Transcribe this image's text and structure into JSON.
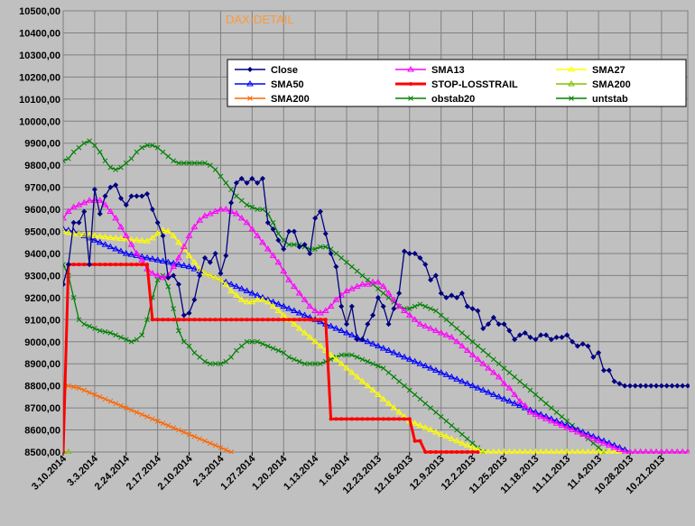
{
  "chart_data": {
    "type": "line",
    "title": "DAX-DETAIL",
    "xlabel": "",
    "ylabel": "",
    "ylim": [
      8500,
      10500
    ],
    "y_step": 100,
    "ytick_labels": [
      "8500,00",
      "8600,00",
      "8700,00",
      "8800,00",
      "8900,00",
      "9000,00",
      "9100,00",
      "9200,00",
      "9300,00",
      "9400,00",
      "9500,00",
      "9600,00",
      "9700,00",
      "9800,00",
      "9900,00",
      "10000,00",
      "10100,00",
      "10200,00",
      "10300,00",
      "10400,00",
      "10500,00"
    ],
    "x_count": 120,
    "xtick_labels": [
      "3.10.2014",
      "3.3.2014",
      "2.24.2014",
      "2.17.2014",
      "2.10.2014",
      "2.3.2014",
      "1.27.2014",
      "1.20.2014",
      "1.13.2014",
      "1.6.2014",
      "12.23.2013",
      "12.16.2013",
      "12.9.2013",
      "12.2.2013",
      "11.25.2013",
      "11.18.2013",
      "11.11.2013",
      "11.4.2013",
      "10.28.2013",
      "10.21.2013"
    ],
    "xtick_positions": [
      0,
      6,
      12,
      18,
      24,
      30,
      36,
      42,
      48,
      54,
      60,
      66,
      72,
      78,
      84,
      90,
      96,
      102,
      108,
      114
    ],
    "grid": true,
    "legend_position": "top-right",
    "series": [
      {
        "name": "Close",
        "color": "#000080",
        "marker": "diamond",
        "step": 1,
        "values": [
          9260,
          9350,
          9540,
          9540,
          9590,
          9350,
          9690,
          9580,
          9660,
          9700,
          9710,
          9650,
          9620,
          9660,
          9660,
          9660,
          9670,
          9600,
          9540,
          9480,
          9290,
          9300,
          9260,
          9120,
          9130,
          9190,
          9300,
          9380,
          9360,
          9400,
          9310,
          9390,
          9630,
          9720,
          9740,
          9720,
          9740,
          9720,
          9740,
          9540,
          9510,
          9460,
          9420,
          9500,
          9500,
          9430,
          9440,
          9400,
          9560,
          9590,
          9490,
          9400,
          9340,
          9160,
          9080,
          9160,
          9010,
          9010,
          9080,
          9120,
          9200,
          9160,
          9080,
          9150,
          9220,
          9410,
          9400,
          9400,
          9380,
          9350,
          9280,
          9300,
          9220,
          9200,
          9210,
          9200,
          9220,
          9160,
          9150,
          9140,
          9060,
          9080,
          9110,
          9080,
          9080,
          9050,
          9010,
          9030,
          9040,
          9020,
          9010,
          9030,
          9030,
          9010,
          9020,
          9020,
          9030,
          9000,
          8980,
          8990,
          8980,
          8930,
          8950,
          8870,
          8870,
          8820,
          8810,
          8800,
          8800,
          8800,
          8800,
          8800,
          8800,
          8800,
          8800,
          8800,
          8800,
          8800,
          8800,
          8800
        ]
      },
      {
        "name": "SMA13",
        "color": "#ff00ff",
        "marker": "triangle",
        "step": 1,
        "values": [
          9560,
          9590,
          9610,
          9620,
          9630,
          9640,
          9640,
          9640,
          9620,
          9590,
          9560,
          9520,
          9480,
          9440,
          9400,
          9370,
          9330,
          9310,
          9300,
          9290,
          9300,
          9340,
          9380,
          9430,
          9480,
          9520,
          9550,
          9570,
          9580,
          9590,
          9600,
          9600,
          9590,
          9580,
          9560,
          9540,
          9510,
          9480,
          9450,
          9420,
          9390,
          9360,
          9320,
          9280,
          9250,
          9220,
          9190,
          9160,
          9140,
          9130,
          9140,
          9160,
          9190,
          9210,
          9230,
          9240,
          9250,
          9260,
          9260,
          9270,
          9270,
          9250,
          9220,
          9190,
          9160,
          9140,
          9120,
          9100,
          9080,
          9070,
          9060,
          9050,
          9040,
          9030,
          9020,
          9000,
          8980,
          8960,
          8940,
          8920,
          8900,
          8880,
          8860,
          8840,
          8810,
          8790,
          8760,
          8730,
          8710,
          8680,
          8670,
          8660,
          8650,
          8640,
          8630,
          8620,
          8610,
          8600,
          8590,
          8580,
          8570,
          8560,
          8550,
          8540,
          8530,
          8520,
          8510,
          8500,
          8500,
          8500,
          8500,
          8500,
          8500,
          8500,
          8500,
          8500,
          8500,
          8500,
          8500,
          8500
        ]
      },
      {
        "name": "SMA27",
        "color": "#ffff00",
        "marker": "triangle",
        "step": 1,
        "values": [
          9500,
          9495,
          9490,
          9488,
          9485,
          9482,
          9480,
          9478,
          9475,
          9472,
          9470,
          9468,
          9465,
          9462,
          9460,
          9458,
          9456,
          9470,
          9490,
          9505,
          9500,
          9480,
          9450,
          9420,
          9390,
          9360,
          9330,
          9310,
          9300,
          9290,
          9280,
          9260,
          9230,
          9210,
          9190,
          9180,
          9180,
          9190,
          9190,
          9180,
          9160,
          9140,
          9120,
          9100,
          9080,
          9060,
          9040,
          9020,
          9000,
          8980,
          8960,
          8940,
          8920,
          8900,
          8880,
          8860,
          8840,
          8820,
          8800,
          8780,
          8760,
          8740,
          8720,
          8700,
          8680,
          8660,
          8640,
          8630,
          8620,
          8610,
          8600,
          8590,
          8580,
          8570,
          8560,
          8550,
          8540,
          8530,
          8520,
          8510,
          8500,
          8500,
          8500,
          8500,
          8500,
          8500,
          8500,
          8500,
          8500,
          8500,
          8500,
          8500,
          8500,
          8500,
          8500,
          8500,
          8500,
          8500,
          8500,
          8500,
          8500,
          8500,
          8500,
          8500,
          8500,
          8500,
          8500,
          8500,
          8500,
          8500,
          8500,
          8500,
          8500,
          8500,
          8500,
          8500,
          8500,
          8500,
          8500,
          8500
        ]
      },
      {
        "name": "SMA50",
        "color": "#0000ff",
        "marker": "triangle",
        "step": 1,
        "values": [
          9510,
          9505,
          9500,
          9490,
          9480,
          9470,
          9460,
          9450,
          9440,
          9430,
          9420,
          9410,
          9400,
          9395,
          9390,
          9385,
          9380,
          9375,
          9370,
          9365,
          9360,
          9355,
          9350,
          9345,
          9340,
          9330,
          9320,
          9310,
          9300,
          9290,
          9280,
          9270,
          9260,
          9250,
          9240,
          9230,
          9220,
          9210,
          9200,
          9190,
          9180,
          9170,
          9160,
          9150,
          9140,
          9130,
          9120,
          9110,
          9100,
          9090,
          9080,
          9070,
          9060,
          9050,
          9040,
          9030,
          9020,
          9010,
          9000,
          8990,
          8980,
          8970,
          8960,
          8950,
          8940,
          8930,
          8920,
          8910,
          8900,
          8890,
          8880,
          8870,
          8860,
          8850,
          8840,
          8830,
          8820,
          8810,
          8800,
          8790,
          8780,
          8770,
          8760,
          8750,
          8740,
          8730,
          8720,
          8710,
          8700,
          8690,
          8680,
          8670,
          8660,
          8650,
          8640,
          8630,
          8620,
          8610,
          8600,
          8590,
          8580,
          8570,
          8560,
          8550,
          8540,
          8530,
          8520,
          8510,
          8500,
          8500,
          8500,
          8500,
          8500,
          8500,
          8500,
          8500,
          8500,
          8500,
          8500,
          8500
        ]
      },
      {
        "name": "STOP-LOSSTRAIL",
        "color": "#ff0000",
        "marker": "dot",
        "step": 1,
        "thick": true,
        "values": [
          8500,
          9350,
          9350,
          9350,
          9350,
          9350,
          9350,
          9350,
          9350,
          9350,
          9350,
          9350,
          9350,
          9350,
          9350,
          9350,
          9350,
          9100,
          9100,
          9100,
          9100,
          9100,
          9100,
          9100,
          9100,
          9100,
          9100,
          9100,
          9100,
          9100,
          9100,
          9100,
          9100,
          9100,
          9100,
          9100,
          9100,
          9100,
          9100,
          9100,
          9100,
          9100,
          9100,
          9100,
          9100,
          9100,
          9100,
          9100,
          9100,
          9100,
          9100,
          8650,
          8650,
          8650,
          8650,
          8650,
          8650,
          8650,
          8650,
          8650,
          8650,
          8650,
          8650,
          8650,
          8650,
          8650,
          8650,
          8550,
          8550,
          8500,
          8500,
          8500,
          8500,
          8500,
          8500,
          8500,
          8500,
          8500,
          8500,
          8500
        ]
      },
      {
        "name": "SMA200",
        "color": "#80c000",
        "marker": "triangle",
        "step": 1,
        "values": [
          8500,
          8500
        ]
      },
      {
        "name": "SMA200",
        "color": "#ff6600",
        "marker": "cross",
        "step": 1,
        "values": [
          8810,
          8800,
          8795,
          8790,
          8780,
          8770,
          8760,
          8750,
          8740,
          8730,
          8720,
          8710,
          8700,
          8690,
          8680,
          8670,
          8660,
          8650,
          8640,
          8630,
          8620,
          8610,
          8600,
          8590,
          8580,
          8570,
          8560,
          8550,
          8540,
          8530,
          8520,
          8510,
          8500
        ]
      },
      {
        "name": "obstab20",
        "color": "#008000",
        "marker": "cross",
        "step": 1,
        "values": [
          9350,
          9300,
          9200,
          9100,
          9080,
          9070,
          9060,
          9050,
          9045,
          9040,
          9030,
          9020,
          9010,
          9000,
          9010,
          9030,
          9100,
          9200,
          9280,
          9300,
          9250,
          9150,
          9050,
          9000,
          8980,
          8950,
          8930,
          8910,
          8900,
          8900,
          8900,
          8910,
          8930,
          8960,
          8980,
          9000,
          9000,
          9000,
          8990,
          8980,
          8970,
          8960,
          8950,
          8930,
          8920,
          8910,
          8900,
          8900,
          8900,
          8900,
          8910,
          8920,
          8930,
          8940,
          8940,
          8940,
          8930,
          8920,
          8910,
          8900,
          8890,
          8880,
          8860,
          8840,
          8820,
          8800,
          8780,
          8760,
          8740,
          8720,
          8700,
          8680,
          8660,
          8640,
          8620,
          8600,
          8580,
          8560,
          8540,
          8520,
          8500
        ]
      },
      {
        "name": "untstab",
        "color": "#008000",
        "marker": "cross",
        "step": 1,
        "values": [
          9820,
          9830,
          9860,
          9880,
          9900,
          9910,
          9890,
          9860,
          9820,
          9790,
          9780,
          9790,
          9810,
          9830,
          9860,
          9880,
          9890,
          9890,
          9880,
          9860,
          9840,
          9820,
          9810,
          9810,
          9810,
          9810,
          9810,
          9810,
          9800,
          9780,
          9750,
          9720,
          9690,
          9660,
          9640,
          9620,
          9610,
          9600,
          9600,
          9580,
          9540,
          9490,
          9460,
          9440,
          9440,
          9440,
          9430,
          9420,
          9420,
          9430,
          9430,
          9420,
          9400,
          9380,
          9360,
          9340,
          9320,
          9300,
          9280,
          9260,
          9240,
          9220,
          9200,
          9180,
          9160,
          9150,
          9150,
          9160,
          9170,
          9160,
          9150,
          9140,
          9120,
          9100,
          9080,
          9060,
          9040,
          9020,
          9000,
          8980,
          8960,
          8940,
          8920,
          8900,
          8880,
          8860,
          8840,
          8820,
          8800,
          8780,
          8760,
          8740,
          8720,
          8700,
          8680,
          8660,
          8640,
          8620,
          8600,
          8580,
          8560,
          8540,
          8520,
          8500
        ]
      }
    ]
  },
  "legend": {
    "items": [
      {
        "label": "Close",
        "color": "#000080",
        "marker": "diamond"
      },
      {
        "label": "SMA13",
        "color": "#ff00ff",
        "marker": "triangle"
      },
      {
        "label": "SMA27",
        "color": "#ffff00",
        "marker": "triangle"
      },
      {
        "label": "SMA50",
        "color": "#0000ff",
        "marker": "triangle"
      },
      {
        "label": "STOP-LOSSTRAIL",
        "color": "#ff0000",
        "marker": "dot"
      },
      {
        "label": "SMA200",
        "color": "#80c000",
        "marker": "triangle"
      },
      {
        "label": "SMA200",
        "color": "#ff6600",
        "marker": "cross"
      },
      {
        "label": "obstab20",
        "color": "#008000",
        "marker": "cross"
      },
      {
        "label": "untstab",
        "color": "#008000",
        "marker": "cross"
      }
    ]
  },
  "colors": {
    "background": "#c0c0c0",
    "plot_area": "#c0c0c0",
    "grid": "#808080",
    "title": "#ff9933",
    "axis_text": "#000000"
  }
}
